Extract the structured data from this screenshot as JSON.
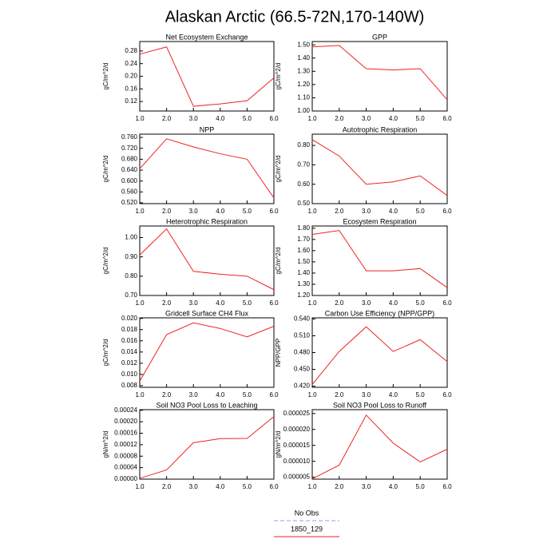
{
  "title": "Alaskan Arctic (66.5-72N,170-140W)",
  "legend": [
    {
      "name": "No Obs",
      "color": "#9999ee",
      "dash": true
    },
    {
      "name": "1850_129",
      "color": "#ee2222",
      "dash": false
    }
  ],
  "chart_data": [
    {
      "type": "line",
      "title": "Net Ecosystem Exchange",
      "y_label": "gC/m^2/d",
      "color": "#ee2222",
      "x": [
        1,
        2,
        3,
        4,
        5,
        6
      ],
      "values": [
        0.27,
        0.293,
        0.105,
        0.1125,
        0.1225,
        0.195
      ],
      "xlim": [
        1,
        6
      ],
      "xticks": [
        {
          "value": 1,
          "label": "1.0"
        },
        {
          "value": 2,
          "label": "2.0"
        },
        {
          "value": 3,
          "label": "3.0"
        },
        {
          "value": 4,
          "label": "4.0"
        },
        {
          "value": 5,
          "label": "5.0"
        },
        {
          "value": 6,
          "label": "6.0"
        }
      ],
      "ylim": [
        0.09,
        0.31
      ],
      "yticks": [
        0.12,
        0.16,
        {
          "value": 0.2,
          "label": "0.20"
        },
        0.24,
        0.28
      ]
    },
    {
      "type": "line",
      "title": "GPP",
      "y_label": "gC/m^2/d",
      "color": "#ee2222",
      "x": [
        1,
        2,
        3,
        4,
        5,
        6
      ],
      "values": [
        1.485,
        1.495,
        1.32,
        1.31,
        1.32,
        1.085
      ],
      "xlim": [
        1,
        6
      ],
      "xticks": [
        {
          "value": 1,
          "label": "1.0"
        },
        {
          "value": 2,
          "label": "2.0"
        },
        {
          "value": 3,
          "label": "3.0"
        },
        {
          "value": 4,
          "label": "4.0"
        },
        {
          "value": 5,
          "label": "5.0"
        },
        {
          "value": 6,
          "label": "6.0"
        }
      ],
      "ylim": [
        1.0,
        1.525
      ],
      "yticks": [
        {
          "value": 1,
          "label": "1.00"
        },
        {
          "value": 1.1,
          "label": "1.10"
        },
        {
          "value": 1.2,
          "label": "1.20"
        },
        {
          "value": 1.3,
          "label": "1.30"
        },
        {
          "value": 1.4,
          "label": "1.40"
        },
        {
          "value": 1.5,
          "label": "1.50"
        }
      ]
    },
    {
      "type": "line",
      "title": "NPP",
      "y_label": "gC/m^2/d",
      "color": "#ee2222",
      "x": [
        1,
        2,
        3,
        4,
        5,
        6
      ],
      "values": [
        0.645,
        0.755,
        0.725,
        0.7,
        0.68,
        0.538
      ],
      "xlim": [
        1,
        6
      ],
      "xticks": [
        {
          "value": 1,
          "label": "1.0"
        },
        {
          "value": 2,
          "label": "2.0"
        },
        {
          "value": 3,
          "label": "3.0"
        },
        {
          "value": 4,
          "label": "4.0"
        },
        {
          "value": 5,
          "label": "5.0"
        },
        {
          "value": 6,
          "label": "6.0"
        }
      ],
      "ylim": [
        0.517,
        0.772
      ],
      "yticks": [
        {
          "value": 0.52,
          "label": "0.520"
        },
        {
          "value": 0.56,
          "label": "0.560"
        },
        {
          "value": 0.6,
          "label": "0.600"
        },
        {
          "value": 0.64,
          "label": "0.640"
        },
        {
          "value": 0.68,
          "label": "0.680"
        },
        {
          "value": 0.72,
          "label": "0.720"
        },
        {
          "value": 0.76,
          "label": "0.760"
        }
      ]
    },
    {
      "type": "line",
      "title": "Autotrophic Respiration",
      "y_label": "gC/m^2/d",
      "color": "#ee2222",
      "x": [
        1,
        2,
        3,
        4,
        5,
        6
      ],
      "values": [
        0.83,
        0.745,
        0.6,
        0.612,
        0.643,
        0.542
      ],
      "xlim": [
        1,
        6
      ],
      "xticks": [
        {
          "value": 1,
          "label": "1.0"
        },
        {
          "value": 2,
          "label": "2.0"
        },
        {
          "value": 3,
          "label": "3.0"
        },
        {
          "value": 4,
          "label": "4.0"
        },
        {
          "value": 5,
          "label": "5.0"
        },
        {
          "value": 6,
          "label": "6.0"
        }
      ],
      "ylim": [
        0.5,
        0.858
      ],
      "yticks": [
        {
          "value": 0.5,
          "label": "0.50"
        },
        {
          "value": 0.6,
          "label": "0.60"
        },
        {
          "value": 0.7,
          "label": "0.70"
        },
        {
          "value": 0.8,
          "label": "0.80"
        }
      ]
    },
    {
      "type": "line",
      "title": "Heterotrophic Respiration",
      "y_label": "gC/m^2/d",
      "color": "#ee2222",
      "x": [
        1,
        2,
        3,
        4,
        5,
        6
      ],
      "values": [
        0.91,
        1.045,
        0.825,
        0.81,
        0.8,
        0.73
      ],
      "xlim": [
        1,
        6
      ],
      "xticks": [
        {
          "value": 1,
          "label": "1.0"
        },
        {
          "value": 2,
          "label": "2.0"
        },
        {
          "value": 3,
          "label": "3.0"
        },
        {
          "value": 4,
          "label": "4.0"
        },
        {
          "value": 5,
          "label": "5.0"
        },
        {
          "value": 6,
          "label": "6.0"
        }
      ],
      "ylim": [
        0.7,
        1.06
      ],
      "yticks": [
        {
          "value": 0.7,
          "label": "0.70"
        },
        {
          "value": 0.8,
          "label": "0.80"
        },
        {
          "value": 0.9,
          "label": "0.90"
        },
        {
          "value": 1,
          "label": "1.00"
        }
      ]
    },
    {
      "type": "line",
      "title": "Ecosystem Respiration",
      "y_label": "gC/m^2/d",
      "color": "#ee2222",
      "x": [
        1,
        2,
        3,
        4,
        5,
        6
      ],
      "values": [
        1.745,
        1.78,
        1.42,
        1.42,
        1.44,
        1.27
      ],
      "xlim": [
        1,
        6
      ],
      "xticks": [
        {
          "value": 1,
          "label": "1.0"
        },
        {
          "value": 2,
          "label": "2.0"
        },
        {
          "value": 3,
          "label": "3.0"
        },
        {
          "value": 4,
          "label": "4.0"
        },
        {
          "value": 5,
          "label": "5.0"
        },
        {
          "value": 6,
          "label": "6.0"
        }
      ],
      "ylim": [
        1.2,
        1.82
      ],
      "yticks": [
        {
          "value": 1.2,
          "label": "1.20"
        },
        {
          "value": 1.3,
          "label": "1.30"
        },
        {
          "value": 1.4,
          "label": "1.40"
        },
        {
          "value": 1.5,
          "label": "1.50"
        },
        {
          "value": 1.6,
          "label": "1.60"
        },
        {
          "value": 1.7,
          "label": "1.70"
        },
        {
          "value": 1.8,
          "label": "1.80"
        }
      ]
    },
    {
      "type": "line",
      "title": "Gridcell Surface CH4 Flux",
      "y_label": "gC/m^2/d",
      "color": "#ee2222",
      "x": [
        1,
        2,
        3,
        4,
        5,
        6
      ],
      "values": [
        0.0088,
        0.0171,
        0.0192,
        0.0182,
        0.0167,
        0.0186
      ],
      "xlim": [
        1,
        6
      ],
      "xticks": [
        {
          "value": 1,
          "label": "1.0"
        },
        {
          "value": 2,
          "label": "2.0"
        },
        {
          "value": 3,
          "label": "3.0"
        },
        {
          "value": 4,
          "label": "4.0"
        },
        {
          "value": 5,
          "label": "5.0"
        },
        {
          "value": 6,
          "label": "6.0"
        }
      ],
      "ylim": [
        0.0077,
        0.0201
      ],
      "yticks": [
        0.008,
        {
          "value": 0.01,
          "label": "0.010"
        },
        0.012,
        0.014,
        0.016,
        0.018,
        {
          "value": 0.02,
          "label": "0.020"
        }
      ]
    },
    {
      "type": "line",
      "title": "Carbon Use Efficiency (NPP/GPP)",
      "y_label": "NPP/GPP",
      "color": "#ee2222",
      "x": [
        1,
        2,
        3,
        4,
        5,
        6
      ],
      "values": [
        0.423,
        0.482,
        0.526,
        0.482,
        0.503,
        0.464
      ],
      "xlim": [
        1,
        6
      ],
      "xticks": [
        {
          "value": 1,
          "label": "1.0"
        },
        {
          "value": 2,
          "label": "2.0"
        },
        {
          "value": 3,
          "label": "3.0"
        },
        {
          "value": 4,
          "label": "4.0"
        },
        {
          "value": 5,
          "label": "5.0"
        },
        {
          "value": 6,
          "label": "6.0"
        }
      ],
      "ylim": [
        0.418,
        0.542
      ],
      "yticks": [
        {
          "value": 0.42,
          "label": "0.420"
        },
        {
          "value": 0.45,
          "label": "0.450"
        },
        {
          "value": 0.48,
          "label": "0.480"
        },
        {
          "value": 0.51,
          "label": "0.510"
        },
        {
          "value": 0.54,
          "label": "0.540"
        }
      ]
    },
    {
      "type": "line",
      "title": "Soil NO3 Pool Loss to Leaching",
      "y_label": "gN/m^2/d",
      "color": "#ee2222",
      "x": [
        1,
        2,
        3,
        4,
        5,
        6
      ],
      "values": [
        3e-06,
        3.2e-05,
        0.000127,
        0.000141,
        0.000142,
        0.000218
      ],
      "xlim": [
        1,
        6
      ],
      "xticks": [
        {
          "value": 1,
          "label": "1.0"
        },
        {
          "value": 2,
          "label": "2.0"
        },
        {
          "value": 3,
          "label": "3.0"
        },
        {
          "value": 4,
          "label": "4.0"
        },
        {
          "value": 5,
          "label": "5.0"
        },
        {
          "value": 6,
          "label": "6.0"
        }
      ],
      "ylim": [
        0,
        0.000242
      ],
      "yticks": [
        {
          "value": 0,
          "label": "0.00000"
        },
        {
          "value": 4e-05,
          "label": "0.00004"
        },
        {
          "value": 8e-05,
          "label": "0.00008"
        },
        {
          "value": 0.00012,
          "label": "0.00012"
        },
        {
          "value": 0.00016,
          "label": "0.00016"
        },
        {
          "value": 0.0002,
          "label": "0.00020"
        },
        {
          "value": 0.00024,
          "label": "0.00024"
        }
      ]
    },
    {
      "type": "line",
      "title": "Soil NO3 Pool Loss to Runoff",
      "y_label": "gN/m^2/d",
      "color": "#ee2222",
      "x": [
        1,
        2,
        3,
        4,
        5,
        6
      ],
      "values": [
        4.5e-06,
        8.8e-06,
        2.45e-05,
        1.57e-05,
        9.8e-06,
        1.38e-05
      ],
      "xlim": [
        1,
        6
      ],
      "xticks": [
        {
          "value": 1,
          "label": "1.0"
        },
        {
          "value": 2,
          "label": "2.0"
        },
        {
          "value": 3,
          "label": "3.0"
        },
        {
          "value": 4,
          "label": "4.0"
        },
        {
          "value": 5,
          "label": "5.0"
        },
        {
          "value": 6,
          "label": "6.0"
        }
      ],
      "ylim": [
        4.4e-06,
        2.62e-05
      ],
      "yticks": [
        {
          "value": 5e-06,
          "label": "0.000005"
        },
        {
          "value": 1e-05,
          "label": "0.000010"
        },
        {
          "value": 1.5e-05,
          "label": "0.000015"
        },
        {
          "value": 2e-05,
          "label": "0.000020"
        },
        {
          "value": 2.5e-05,
          "label": "0.000025"
        }
      ]
    }
  ]
}
